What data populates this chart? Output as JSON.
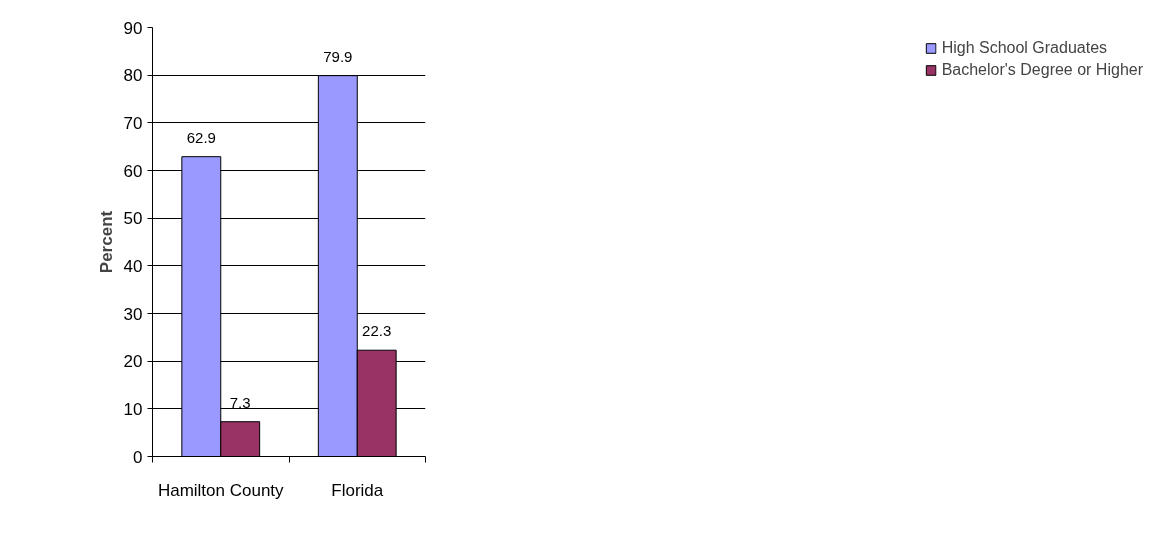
{
  "chart_data": {
    "type": "bar",
    "ylabel": "Percent",
    "categories": [
      "Hamilton County",
      "Florida"
    ],
    "series": [
      {
        "name": "High School Graduates",
        "color": "#9999ff",
        "values": [
          62.9,
          79.9
        ]
      },
      {
        "name": "Bachelor's Degree or Higher",
        "color": "#993366",
        "values": [
          7.3,
          22.3
        ]
      }
    ],
    "ylim": [
      0,
      90
    ],
    "yticks": [
      0,
      10,
      20,
      30,
      40,
      50,
      60,
      70,
      80,
      90
    ],
    "grid": "y",
    "legend": "right",
    "data_labels": true
  }
}
